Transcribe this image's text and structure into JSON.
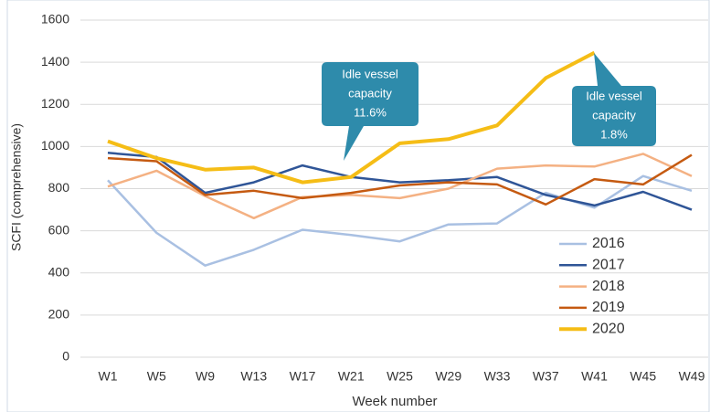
{
  "chart_data": {
    "type": "line",
    "categories": [
      "W1",
      "W5",
      "W9",
      "W13",
      "W17",
      "W21",
      "W25",
      "W29",
      "W33",
      "W37",
      "W41",
      "W45",
      "W49"
    ],
    "series": [
      {
        "name": "2016",
        "color": "#a9c0e2",
        "values": [
          840,
          590,
          435,
          510,
          605,
          580,
          550,
          630,
          635,
          780,
          710,
          860,
          790
        ]
      },
      {
        "name": "2017",
        "color": "#2f5597",
        "values": [
          970,
          950,
          780,
          830,
          910,
          855,
          830,
          840,
          855,
          770,
          720,
          785,
          700
        ]
      },
      {
        "name": "2018",
        "color": "#f4b183",
        "values": [
          810,
          885,
          765,
          660,
          760,
          770,
          755,
          800,
          895,
          910,
          905,
          965,
          860
        ]
      },
      {
        "name": "2019",
        "color": "#c55a11",
        "values": [
          945,
          930,
          770,
          790,
          755,
          780,
          815,
          830,
          820,
          725,
          845,
          820,
          960
        ]
      },
      {
        "name": "2020",
        "color": "#f5bd16",
        "values": [
          1025,
          945,
          890,
          900,
          830,
          855,
          1015,
          1035,
          1100,
          1325,
          1445,
          null,
          null
        ]
      }
    ],
    "ylim": [
      0,
      1600
    ],
    "yticks": [
      0,
      200,
      400,
      600,
      800,
      1000,
      1200,
      1400,
      1600
    ],
    "grid": true,
    "ylabel": "SCFI (comprehensive)",
    "xlabel": "Week number",
    "annotations": [
      {
        "lines": [
          "Idle vessel",
          "capacity",
          "11.6%"
        ]
      },
      {
        "lines": [
          "Idle vessel",
          "capacity",
          "1.8%"
        ]
      }
    ]
  }
}
